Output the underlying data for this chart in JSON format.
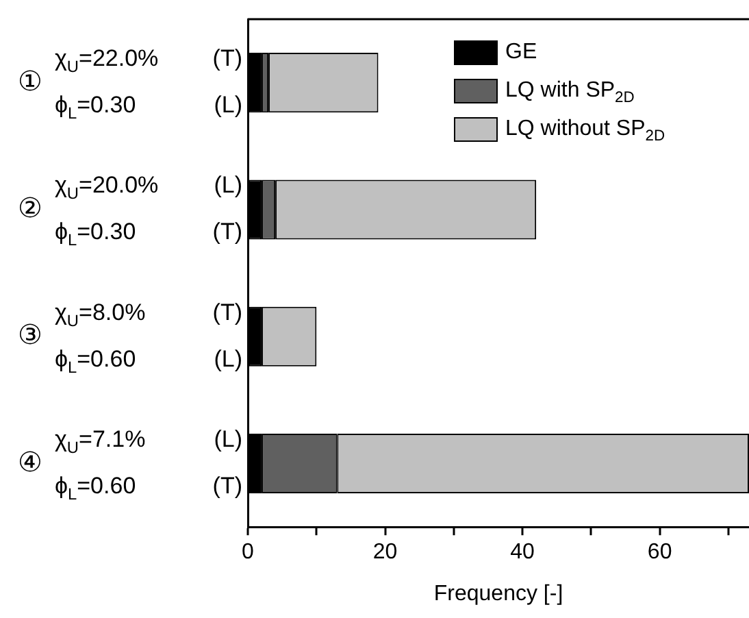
{
  "chart_data": {
    "type": "bar",
    "orientation": "horizontal",
    "stacked": true,
    "categories": [
      "①\nχ$_{U}$=22.0%\t(T)\nϕ$_{L}$=0.30\t(L)",
      "②\nχ$_{U}$=20.0%\t(L)\nϕ$_{L}$=0.30\t(T)",
      "③\nχ$_{U}$=8.0%\t(T)\nϕ$_{L}$=0.60\t(L)",
      "④\nχ$_{U}$=7.1%\t(L)\nϕ$_{L}$=0.60\t(T)"
    ],
    "series": [
      {
        "name": "GE",
        "color": "#000000",
        "values": [
          2,
          2,
          2,
          2
        ]
      },
      {
        "name": "LQ with SP$_{2D}$",
        "color": "#606060",
        "values": [
          1,
          2,
          0,
          11
        ]
      },
      {
        "name": "LQ without SP$_{2D}$",
        "color": "#c0c0c0",
        "values": [
          16,
          38,
          8,
          60
        ]
      }
    ],
    "xlabel": "Frequency [-]",
    "xlim": [
      0,
      73
    ],
    "xticks": [
      0,
      {
        "value": 10,
        "label": null
      },
      20,
      {
        "value": 30,
        "label": null
      },
      40,
      {
        "value": 50,
        "label": null
      },
      60,
      {
        "value": 70,
        "label": null
      }
    ],
    "legend": "top right",
    "grid": false
  }
}
